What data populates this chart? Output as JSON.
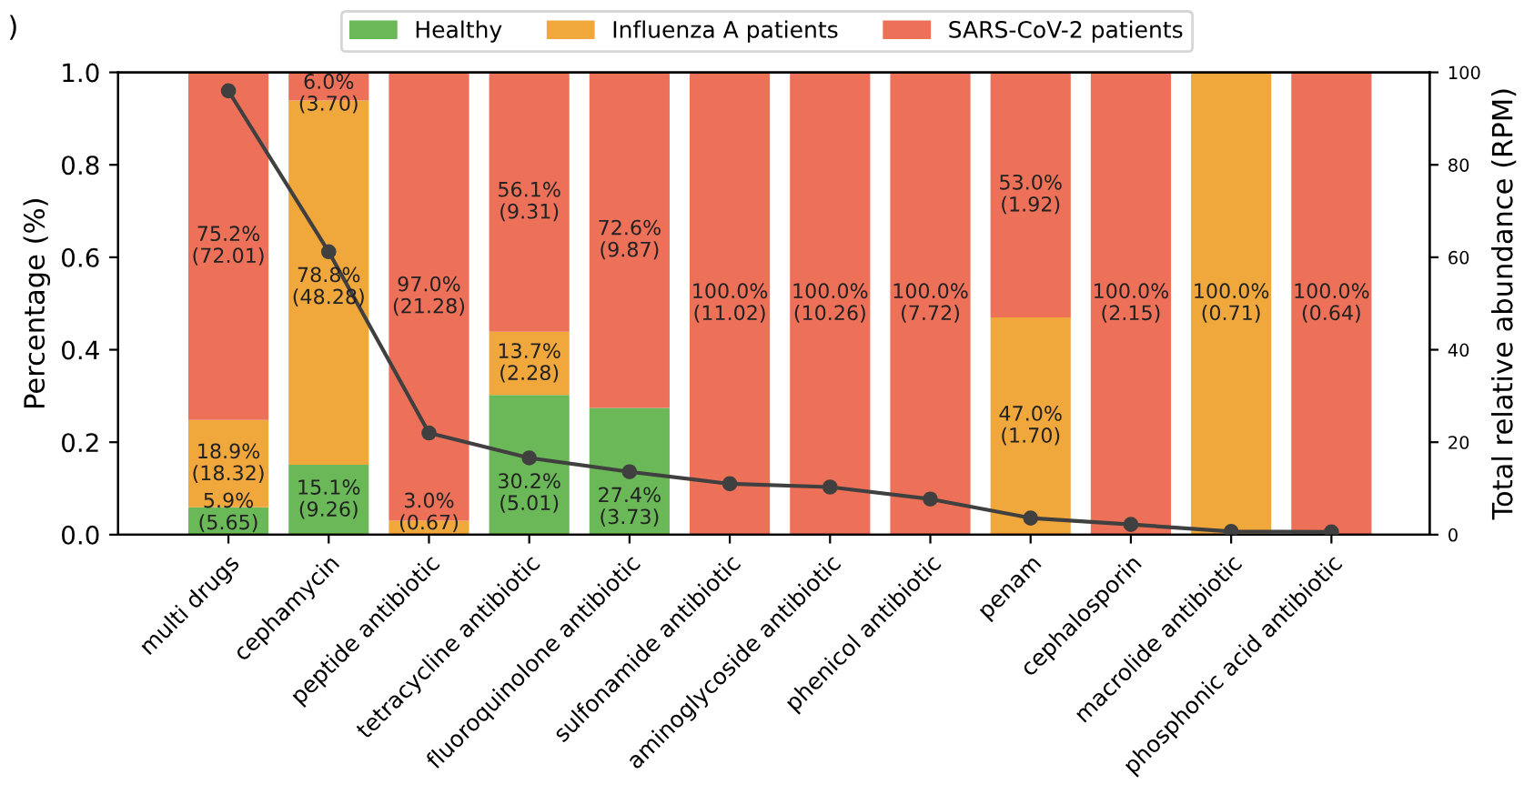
{
  "chart_data": {
    "type": "bar",
    "stacked": true,
    "ylabel": "Percentage (%)",
    "y2label": "Total relative abundance (RPM)",
    "annotations": [
      ")"
    ],
    "categories": [
      "multi drugs",
      "cephamycin",
      "peptide antibiotic",
      "tetracycline antibiotic",
      "fluoroquinolone antibiotic",
      "sulfonamide antibiotic",
      "aminoglycoside antibiotic",
      "phenicol antibiotic",
      "penam",
      "cephalosporin",
      "macrolide antibiotic",
      "phosphonic acid antibiotic"
    ],
    "ylim": [
      0,
      1
    ],
    "yticks": [
      {
        "value": 0,
        "label": "0.0"
      },
      {
        "value": 0.2,
        "label": "0.2"
      },
      {
        "value": 0.4,
        "label": "0.4"
      },
      {
        "value": 0.6,
        "label": "0.6"
      },
      {
        "value": 0.8,
        "label": "0.8"
      },
      {
        "value": 1,
        "label": "1.0"
      }
    ],
    "y2lim": [
      0,
      100
    ],
    "y2ticks": [
      0,
      20,
      40,
      60,
      80,
      100
    ],
    "legend": "top",
    "grid": false,
    "series": [
      {
        "name": "Healthy",
        "color": "#6ab858",
        "values": [
          0.059,
          0.151,
          0,
          0.302,
          0.274,
          0,
          0,
          0,
          0,
          0,
          0,
          0
        ],
        "value_labels": [
          "5.9%\n(5.65)",
          "15.1%\n(9.26)",
          null,
          "30.2%\n(5.01)",
          "27.4%\n(3.73)",
          null,
          null,
          null,
          null,
          null,
          null,
          null
        ]
      },
      {
        "name": "Influenza A patients",
        "color": "#f0a83c",
        "values": [
          0.189,
          0.788,
          0.03,
          0.137,
          0,
          0,
          0,
          0,
          0.47,
          0,
          1,
          0
        ],
        "value_labels": [
          "18.9%\n(18.32)",
          "78.8%\n(48.28)",
          "3.0%\n(0.67)",
          "13.7%\n(2.28)",
          null,
          null,
          null,
          null,
          "47.0%\n(1.70)",
          null,
          "100.0%\n(0.71)",
          null
        ]
      },
      {
        "name": "SARS-CoV-2 patients",
        "color": "#ec7158",
        "values": [
          0.752,
          0.06,
          0.97,
          0.561,
          0.726,
          1,
          1,
          1,
          0.53,
          1,
          0,
          1
        ],
        "value_labels": [
          "75.2%\n(72.01)",
          "6.0%\n(3.70)",
          "97.0%\n(21.28)",
          "56.1%\n(9.31)",
          "72.6%\n(9.87)",
          "100.0%\n(11.02)",
          "100.0%\n(10.26)",
          "100.0%\n(7.72)",
          "53.0%\n(1.92)",
          "100.0%\n(2.15)",
          null,
          "100.0%\n(0.64)"
        ]
      },
      {
        "type": "line",
        "axis": "y2",
        "color": "#404040",
        "marker": "circle",
        "line_style": "solid",
        "values": [
          96.0,
          61.2,
          22.0,
          16.6,
          13.6,
          11.0,
          10.3,
          7.7,
          3.6,
          2.2,
          0.7,
          0.6
        ]
      }
    ]
  }
}
